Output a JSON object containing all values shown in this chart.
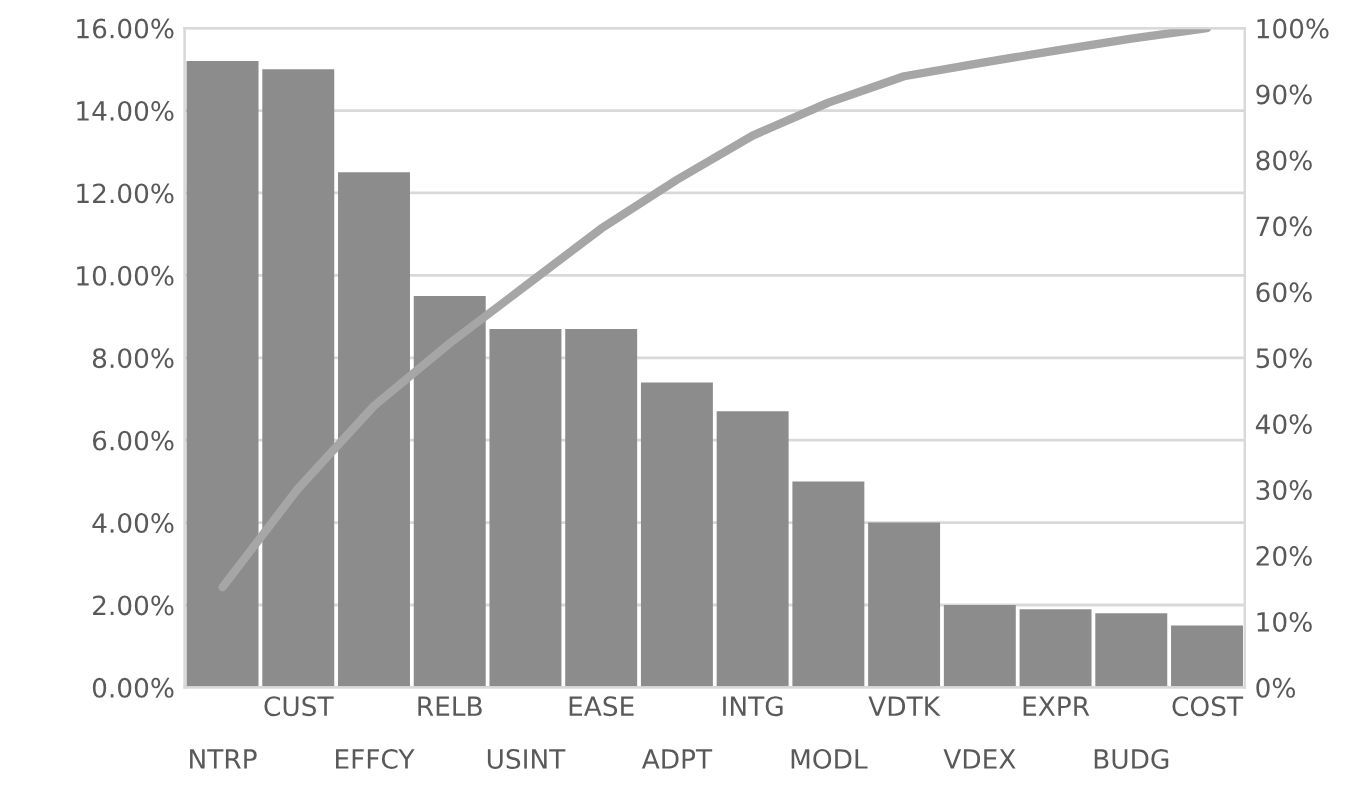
{
  "chart_data": {
    "type": "bar",
    "categories": [
      "NTRP",
      "CUST",
      "EFFCY",
      "RELB",
      "USINT",
      "EASE",
      "ADPT",
      "INTG",
      "MODL",
      "VDTK",
      "VDEX",
      "EXPR",
      "BUDG",
      "COST"
    ],
    "series": [
      {
        "color": "#8c8c8c",
        "values": [
          15.2,
          15.0,
          12.5,
          9.5,
          8.7,
          8.7,
          7.4,
          6.7,
          5.0,
          4.0,
          2.0,
          1.9,
          1.8,
          1.5
        ]
      },
      {
        "type": "line",
        "axis": "y2",
        "color": "#a6a6a6",
        "values": [
          15.2,
          30.2,
          42.7,
          52.2,
          60.9,
          69.6,
          77.0,
          83.7,
          88.7,
          92.7,
          94.7,
          96.6,
          98.4,
          100
        ]
      }
    ],
    "ylim": [
      0,
      16
    ],
    "yticks": [
      {
        "value": 0,
        "label": "0.00%"
      },
      {
        "value": 2,
        "label": "2.00%"
      },
      {
        "value": 4,
        "label": "4.00%"
      },
      {
        "value": 6,
        "label": "6.00%"
      },
      {
        "value": 8,
        "label": "8.00%"
      },
      {
        "value": 10,
        "label": "10.00%"
      },
      {
        "value": 12,
        "label": "12.00%"
      },
      {
        "value": 14,
        "label": "14.00%"
      },
      {
        "value": 16,
        "label": "16.00%"
      }
    ],
    "y2lim": [
      0,
      100
    ],
    "y2ticks": [
      {
        "value": 0,
        "label": "0%"
      },
      {
        "value": 10,
        "label": "10%"
      },
      {
        "value": 20,
        "label": "20%"
      },
      {
        "value": 30,
        "label": "30%"
      },
      {
        "value": 40,
        "label": "40%"
      },
      {
        "value": 50,
        "label": "50%"
      },
      {
        "value": 60,
        "label": "60%"
      },
      {
        "value": 70,
        "label": "70%"
      },
      {
        "value": 80,
        "label": "80%"
      },
      {
        "value": 90,
        "label": "90%"
      },
      {
        "value": 100,
        "label": "100%"
      }
    ],
    "grid": "y"
  }
}
